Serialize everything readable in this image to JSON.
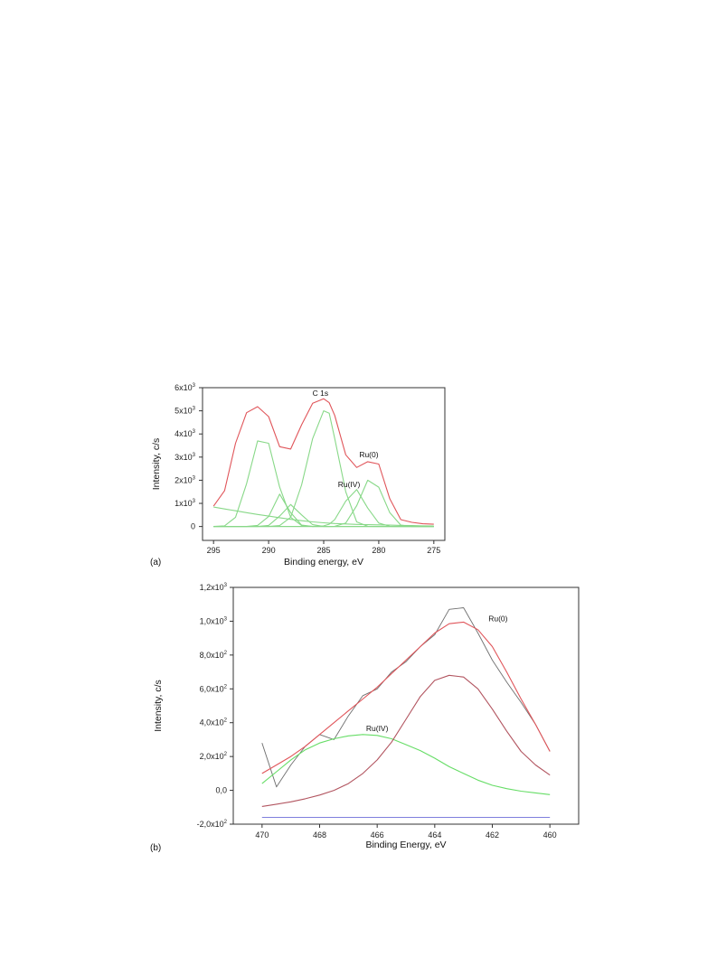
{
  "chart_data": [
    {
      "type": "line",
      "panel_label": "(a)",
      "xlabel": "Binding energy, eV",
      "ylabel": "Intensity, c/s",
      "x_reversed": true,
      "xlim": [
        296,
        274
      ],
      "ylim": [
        -600,
        6000
      ],
      "x_ticks": [
        {
          "value": 295,
          "label": "295"
        },
        {
          "value": 290,
          "label": "290"
        },
        {
          "value": 285,
          "label": "285"
        },
        {
          "value": 280,
          "label": "280"
        },
        {
          "value": 275,
          "label": "275"
        }
      ],
      "y_ticks": [
        {
          "value": 0,
          "label": "0",
          "exp": ""
        },
        {
          "value": 1000,
          "label": "1x10",
          "exp": "3"
        },
        {
          "value": 2000,
          "label": "2x10",
          "exp": "3"
        },
        {
          "value": 3000,
          "label": "3x10",
          "exp": "3"
        },
        {
          "value": 4000,
          "label": "4x10",
          "exp": "3"
        },
        {
          "value": 5000,
          "label": "5x10",
          "exp": "3"
        },
        {
          "value": 6000,
          "label": "6x10",
          "exp": "3"
        }
      ],
      "annotations": [
        {
          "text": "C 1s",
          "x": 285.3,
          "y": 5650
        },
        {
          "text": "Ru(0)",
          "x": 280.9,
          "y": 3000
        },
        {
          "text": "Ru(IV)",
          "x": 282.7,
          "y": 1700
        }
      ],
      "x": [
        295.0,
        294.0,
        293.0,
        292.0,
        291.0,
        290.0,
        289.0,
        288.0,
        287.0,
        286.0,
        285.0,
        284.5,
        284.0,
        283.0,
        282.0,
        281.0,
        280.0,
        279.0,
        278.0,
        277.0,
        276.0,
        275.0
      ],
      "series": [
        {
          "name": "envelope",
          "color": "#e0555a",
          "y": [
            880,
            1550,
            3600,
            4920,
            5180,
            4750,
            3450,
            3350,
            4400,
            5330,
            5520,
            5350,
            4800,
            3100,
            2550,
            2800,
            2700,
            1200,
            300,
            180,
            120,
            100
          ]
        },
        {
          "name": "background",
          "color": "#88d888",
          "y": [
            840,
            760,
            680,
            600,
            520,
            450,
            380,
            310,
            250,
            200,
            160,
            145,
            130,
            110,
            90,
            80,
            70,
            60,
            50,
            40,
            30,
            20
          ]
        },
        {
          "name": "component 1",
          "color": "#88d888",
          "y": [
            0,
            30,
            400,
            1850,
            3700,
            3600,
            1700,
            400,
            40,
            0,
            0,
            0,
            0,
            0,
            0,
            0,
            0,
            0,
            0,
            0,
            0,
            0
          ]
        },
        {
          "name": "component 2",
          "color": "#88d888",
          "y": [
            0,
            0,
            0,
            0,
            50,
            430,
            1400,
            600,
            60,
            0,
            0,
            0,
            0,
            0,
            0,
            0,
            0,
            0,
            0,
            0,
            0,
            0
          ]
        },
        {
          "name": "component 3",
          "color": "#88d888",
          "y": [
            0,
            0,
            0,
            0,
            0,
            50,
            450,
            950,
            500,
            80,
            0,
            0,
            0,
            0,
            0,
            0,
            0,
            0,
            0,
            0,
            0,
            0
          ]
        },
        {
          "name": "component 4",
          "color": "#88d888",
          "y": [
            0,
            0,
            0,
            0,
            0,
            0,
            40,
            400,
            1800,
            3800,
            5000,
            4900,
            3800,
            1500,
            200,
            10,
            0,
            0,
            0,
            0,
            0,
            0
          ]
        },
        {
          "name": "component 5",
          "color": "#88d888",
          "y": [
            0,
            0,
            0,
            0,
            0,
            0,
            0,
            0,
            0,
            0,
            30,
            100,
            300,
            1100,
            1600,
            800,
            150,
            10,
            0,
            0,
            0,
            0
          ]
        },
        {
          "name": "component 6",
          "color": "#88d888",
          "y": [
            0,
            0,
            0,
            0,
            0,
            0,
            0,
            0,
            0,
            0,
            0,
            0,
            10,
            150,
            900,
            2000,
            1700,
            600,
            60,
            0,
            0,
            0
          ]
        }
      ]
    },
    {
      "type": "line",
      "panel_label": "(b)",
      "xlabel": "Binding Energy, eV",
      "ylabel": "Intensity, c/s",
      "x_reversed": true,
      "xlim": [
        471,
        459
      ],
      "ylim": [
        -200,
        1200
      ],
      "x_ticks": [
        {
          "value": 470,
          "label": "470"
        },
        {
          "value": 468,
          "label": "468"
        },
        {
          "value": 466,
          "label": "466"
        },
        {
          "value": 464,
          "label": "464"
        },
        {
          "value": 462,
          "label": "462"
        },
        {
          "value": 460,
          "label": "460"
        }
      ],
      "y_ticks": [
        {
          "value": -200,
          "label": "-2,0x10",
          "exp": "2"
        },
        {
          "value": 0,
          "label": "0,0",
          "exp": ""
        },
        {
          "value": 200,
          "label": "2,0x10",
          "exp": "2"
        },
        {
          "value": 400,
          "label": "4,0x10",
          "exp": "2"
        },
        {
          "value": 600,
          "label": "6,0x10",
          "exp": "2"
        },
        {
          "value": 800,
          "label": "8,0x10",
          "exp": "2"
        },
        {
          "value": 1000,
          "label": "1,0x10",
          "exp": "3"
        },
        {
          "value": 1200,
          "label": "1,2x10",
          "exp": "3"
        }
      ],
      "annotations": [
        {
          "text": "Ru(0)",
          "x": 461.8,
          "y": 1000
        },
        {
          "text": "Ru(IV)",
          "x": 466.0,
          "y": 350
        }
      ],
      "x": [
        470.0,
        469.5,
        469.0,
        468.5,
        468.0,
        467.5,
        467.0,
        466.5,
        466.0,
        465.5,
        465.0,
        464.5,
        464.0,
        463.5,
        463.0,
        462.5,
        462.0,
        461.5,
        461.0,
        460.5,
        460.0
      ],
      "series": [
        {
          "name": "raw",
          "color": "#6f6f6f",
          "y": [
            280,
            20,
            150,
            260,
            330,
            300,
            440,
            560,
            600,
            700,
            760,
            850,
            920,
            1070,
            1080,
            930,
            770,
            640,
            520,
            390,
            230
          ]
        },
        {
          "name": "envelope",
          "color": "#e0555a",
          "y": [
            100,
            150,
            200,
            260,
            330,
            400,
            470,
            540,
            610,
            690,
            770,
            850,
            930,
            985,
            995,
            950,
            850,
            700,
            540,
            390,
            230
          ]
        },
        {
          "name": "Ru(IV) component",
          "color": "#66dd66",
          "y": [
            40,
            110,
            180,
            240,
            280,
            305,
            322,
            330,
            325,
            305,
            270,
            235,
            190,
            140,
            100,
            60,
            30,
            10,
            -5,
            -15,
            -25
          ]
        },
        {
          "name": "Ru(0) component",
          "color": "#b25560",
          "y": [
            -95,
            -82,
            -68,
            -50,
            -28,
            0,
            40,
            100,
            180,
            285,
            420,
            555,
            650,
            680,
            670,
            600,
            480,
            350,
            230,
            150,
            90
          ]
        },
        {
          "name": "baseline",
          "color": "#7f7fdd",
          "y": [
            -160,
            -160,
            -160,
            -160,
            -160,
            -160,
            -160,
            -160,
            -160,
            -160,
            -160,
            -160,
            -160,
            -160,
            -160,
            -160,
            -160,
            -160,
            -160,
            -160,
            -160
          ]
        }
      ]
    }
  ]
}
